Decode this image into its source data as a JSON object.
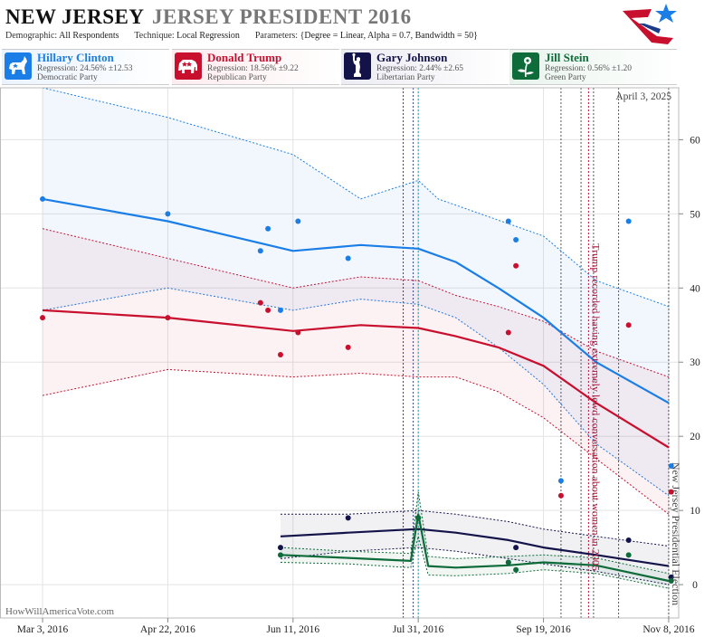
{
  "header": {
    "state": "NEW JERSEY",
    "race": "JERSEY PRESIDENT 2016",
    "demographic_label": "Demographic:",
    "demographic_value": "All Respondents",
    "technique_label": "Technique:",
    "technique_value": "Local Regression",
    "parameters_label": "Parameters:",
    "parameters_value": "{Degree = Linear, Alpha = 0.7, Bandwidth = 50}"
  },
  "candidates": [
    {
      "name": "Hillary Clinton",
      "regression": "Regression: 24.56% ±12.53",
      "party": "Democratic Party",
      "color": "#1a7ee6",
      "icon": "donkey-icon"
    },
    {
      "name": "Donald Trump",
      "regression": "Regression: 18.56% ±9.22",
      "party": "Republican Party",
      "color": "#c8102e",
      "icon": "elephant-icon"
    },
    {
      "name": "Gary Johnson",
      "regression": "Regression: 2.44% ±2.65",
      "party": "Libertarian Party",
      "color": "#13134a",
      "icon": "statue-of-liberty-icon"
    },
    {
      "name": "Jill Stein",
      "regression": "Regression: 0.56% ±1.20",
      "party": "Green Party",
      "color": "#0e6b3a",
      "icon": "flower-icon"
    }
  ],
  "date_stamp": "April 3, 2025",
  "watermark": "HowWillAmericaVote.com",
  "chart_data": {
    "type": "line",
    "x_ticks": [
      "Mar 3, 2016",
      "Apr 22, 2016",
      "Jun 11, 2016",
      "Jul 31, 2016",
      "Sep 19, 2016",
      "Nov 8, 2016"
    ],
    "y_ticks": [
      0,
      10,
      20,
      30,
      40,
      50,
      60
    ],
    "ylim": [
      -4.5,
      67
    ],
    "xlim": [
      "2016-02-15",
      "2016-11-12"
    ],
    "grid": true,
    "annotations": [
      {
        "text": "Trump recorded having extremely lewd conversation about women in 2005",
        "date": "2016-10-07",
        "color": "#b0103a"
      },
      {
        "text": "New Jersey Presidential Election",
        "date": "2016-11-08",
        "color": "#444444"
      }
    ],
    "event_lines": [
      {
        "date": "2016-07-25",
        "color": "#a0103a"
      },
      {
        "date": "2016-07-29",
        "color": "#3a3a80"
      },
      {
        "date": "2016-07-31",
        "color": "#2a9aa0"
      },
      {
        "date": "2016-09-26",
        "color": "#555555"
      },
      {
        "date": "2016-10-04",
        "color": "#555555"
      },
      {
        "date": "2016-10-07",
        "color": "#b0103a"
      },
      {
        "date": "2016-10-09",
        "color": "#555555"
      },
      {
        "date": "2016-10-19",
        "color": "#555555"
      },
      {
        "date": "2016-11-08",
        "color": "#555555"
      }
    ],
    "series": [
      {
        "name": "Hillary Clinton",
        "color": "#1a7ee6",
        "points": [
          [
            "2016-03-03",
            52
          ],
          [
            "2016-04-22",
            50
          ],
          [
            "2016-05-29",
            45
          ],
          [
            "2016-06-01",
            48
          ],
          [
            "2016-06-06",
            37
          ],
          [
            "2016-06-13",
            49
          ],
          [
            "2016-07-03",
            44
          ],
          [
            "2016-09-05",
            49
          ],
          [
            "2016-09-08",
            46.5
          ],
          [
            "2016-09-26",
            14
          ],
          [
            "2016-10-23",
            49
          ],
          [
            "2016-11-09",
            16
          ]
        ],
        "trend": [
          [
            "2016-03-03",
            52
          ],
          [
            "2016-04-22",
            49
          ],
          [
            "2016-06-11",
            45
          ],
          [
            "2016-07-08",
            45.8
          ],
          [
            "2016-07-31",
            45.3
          ],
          [
            "2016-08-15",
            43.5
          ],
          [
            "2016-09-01",
            40
          ],
          [
            "2016-09-19",
            36
          ],
          [
            "2016-10-10",
            30
          ],
          [
            "2016-11-08",
            24.5
          ]
        ],
        "upper": [
          [
            "2016-03-03",
            67
          ],
          [
            "2016-04-22",
            63
          ],
          [
            "2016-06-11",
            58
          ],
          [
            "2016-07-08",
            52
          ],
          [
            "2016-07-31",
            54.5
          ],
          [
            "2016-08-08",
            52
          ],
          [
            "2016-09-19",
            47
          ],
          [
            "2016-10-10",
            41
          ],
          [
            "2016-11-08",
            37.5
          ]
        ],
        "lower": [
          [
            "2016-03-03",
            37
          ],
          [
            "2016-04-22",
            40
          ],
          [
            "2016-06-11",
            37
          ],
          [
            "2016-07-08",
            38.5
          ],
          [
            "2016-07-31",
            37.8
          ],
          [
            "2016-08-15",
            36
          ],
          [
            "2016-09-01",
            32
          ],
          [
            "2016-09-19",
            27
          ],
          [
            "2016-10-10",
            19
          ],
          [
            "2016-11-08",
            12
          ]
        ]
      },
      {
        "name": "Donald Trump",
        "color": "#c8102e",
        "points": [
          [
            "2016-03-03",
            36
          ],
          [
            "2016-04-22",
            36
          ],
          [
            "2016-05-29",
            38
          ],
          [
            "2016-06-01",
            37
          ],
          [
            "2016-06-06",
            31
          ],
          [
            "2016-06-13",
            34
          ],
          [
            "2016-07-03",
            32
          ],
          [
            "2016-09-05",
            34
          ],
          [
            "2016-09-08",
            43
          ],
          [
            "2016-09-26",
            12
          ],
          [
            "2016-10-23",
            35
          ],
          [
            "2016-11-09",
            12.5
          ]
        ],
        "trend": [
          [
            "2016-03-03",
            37
          ],
          [
            "2016-04-22",
            36
          ],
          [
            "2016-06-11",
            34.2
          ],
          [
            "2016-07-08",
            35
          ],
          [
            "2016-07-31",
            34.6
          ],
          [
            "2016-08-15",
            33.5
          ],
          [
            "2016-09-01",
            32
          ],
          [
            "2016-09-19",
            29.5
          ],
          [
            "2016-10-10",
            24.5
          ],
          [
            "2016-11-08",
            18.5
          ]
        ],
        "upper": [
          [
            "2016-03-03",
            48
          ],
          [
            "2016-04-22",
            44
          ],
          [
            "2016-06-11",
            40
          ],
          [
            "2016-07-08",
            41.5
          ],
          [
            "2016-07-31",
            41
          ],
          [
            "2016-08-15",
            39
          ],
          [
            "2016-09-01",
            37.5
          ],
          [
            "2016-09-19",
            35.5
          ],
          [
            "2016-10-10",
            31.5
          ],
          [
            "2016-11-08",
            28
          ]
        ],
        "lower": [
          [
            "2016-03-03",
            25.5
          ],
          [
            "2016-04-22",
            29
          ],
          [
            "2016-06-11",
            28
          ],
          [
            "2016-07-08",
            28.5
          ],
          [
            "2016-07-31",
            28
          ],
          [
            "2016-08-15",
            28
          ],
          [
            "2016-09-01",
            26
          ],
          [
            "2016-09-19",
            22.5
          ],
          [
            "2016-10-10",
            17
          ],
          [
            "2016-11-08",
            9.5
          ]
        ]
      },
      {
        "name": "Gary Johnson",
        "color": "#13134a",
        "points": [
          [
            "2016-06-06",
            5
          ],
          [
            "2016-07-03",
            9
          ],
          [
            "2016-07-31",
            9
          ],
          [
            "2016-09-05",
            3
          ],
          [
            "2016-09-08",
            5
          ],
          [
            "2016-10-23",
            6
          ],
          [
            "2016-11-09",
            1
          ]
        ],
        "trend": [
          [
            "2016-06-06",
            6.5
          ],
          [
            "2016-07-03",
            7
          ],
          [
            "2016-07-31",
            7.5
          ],
          [
            "2016-08-15",
            7
          ],
          [
            "2016-09-05",
            6
          ],
          [
            "2016-09-19",
            5
          ],
          [
            "2016-10-10",
            4
          ],
          [
            "2016-11-08",
            2.5
          ]
        ],
        "upper": [
          [
            "2016-06-06",
            9.5
          ],
          [
            "2016-07-03",
            9.5
          ],
          [
            "2016-07-31",
            10
          ],
          [
            "2016-08-15",
            9.5
          ],
          [
            "2016-09-05",
            8.5
          ],
          [
            "2016-09-19",
            7.5
          ],
          [
            "2016-10-10",
            6.5
          ],
          [
            "2016-11-08",
            5.2
          ]
        ],
        "lower": [
          [
            "2016-06-06",
            3.5
          ],
          [
            "2016-07-03",
            4.5
          ],
          [
            "2016-07-31",
            5
          ],
          [
            "2016-08-15",
            4.5
          ],
          [
            "2016-09-05",
            3.5
          ],
          [
            "2016-09-19",
            2.8
          ],
          [
            "2016-10-10",
            1.8
          ],
          [
            "2016-11-08",
            0
          ]
        ]
      },
      {
        "name": "Jill Stein",
        "color": "#0e6b3a",
        "points": [
          [
            "2016-06-06",
            4
          ],
          [
            "2016-07-31",
            9
          ],
          [
            "2016-09-05",
            3
          ],
          [
            "2016-09-08",
            2
          ],
          [
            "2016-10-23",
            4
          ],
          [
            "2016-11-09",
            0.5
          ]
        ],
        "trend": [
          [
            "2016-06-06",
            4
          ],
          [
            "2016-07-03",
            3.6
          ],
          [
            "2016-07-28",
            3.2
          ],
          [
            "2016-07-31",
            9.5
          ],
          [
            "2016-08-04",
            2.5
          ],
          [
            "2016-08-15",
            2.3
          ],
          [
            "2016-09-05",
            2.6
          ],
          [
            "2016-09-19",
            3
          ],
          [
            "2016-10-10",
            2.6
          ],
          [
            "2016-11-08",
            0.5
          ]
        ],
        "upper": [
          [
            "2016-06-06",
            5
          ],
          [
            "2016-07-03",
            4.5
          ],
          [
            "2016-07-28",
            4.2
          ],
          [
            "2016-07-31",
            12.5
          ],
          [
            "2016-08-04",
            3.8
          ],
          [
            "2016-08-15",
            3.5
          ],
          [
            "2016-09-05",
            3.8
          ],
          [
            "2016-09-19",
            4
          ],
          [
            "2016-10-10",
            3.6
          ],
          [
            "2016-11-08",
            1.5
          ]
        ],
        "lower": [
          [
            "2016-06-06",
            3
          ],
          [
            "2016-07-03",
            2.8
          ],
          [
            "2016-07-28",
            2.3
          ],
          [
            "2016-07-31",
            6.5
          ],
          [
            "2016-08-04",
            1.3
          ],
          [
            "2016-08-15",
            1.2
          ],
          [
            "2016-09-05",
            1.5
          ],
          [
            "2016-09-19",
            2
          ],
          [
            "2016-10-10",
            1.5
          ],
          [
            "2016-11-08",
            -0.5
          ]
        ]
      }
    ]
  }
}
